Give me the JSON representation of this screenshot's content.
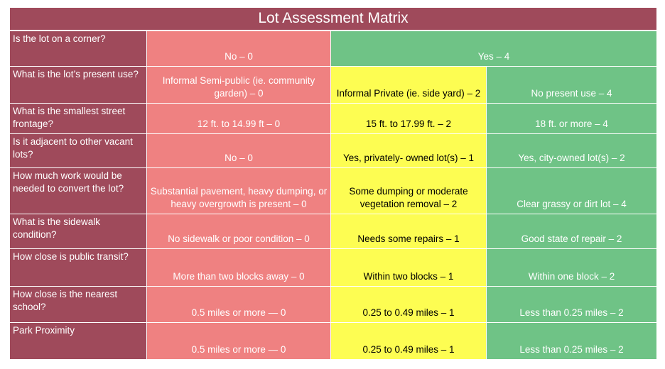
{
  "title": "Lot Assessment Matrix",
  "rows": [
    {
      "question": "Is the lot on a corner?",
      "red": "No – 0",
      "green": "Yes – 4"
    },
    {
      "question": "What is the lot’s present use?",
      "red": "Informal Semi-public (ie. community garden) – 0",
      "yellow": "Informal Private (ie. side yard) – 2",
      "green": "No present use – 4"
    },
    {
      "question": "What is the smallest street frontage?",
      "red": "12 ft. to 14.99 ft – 0",
      "yellow": "15 ft. to 17.99 ft. – 2",
      "green": "18 ft. or more – 4"
    },
    {
      "question": "Is it adjacent to other vacant lots?",
      "red": "No – 0",
      "yellow": "Yes, privately- owned lot(s) – 1",
      "green": "Yes, city-owned lot(s) – 2"
    },
    {
      "question": "How much work would be needed to convert the lot?",
      "red": "Substantial pavement, heavy dumping, or heavy overgrowth is present – 0",
      "yellow": "Some dumping or moderate vegetation removal – 2",
      "green": "Clear grassy or dirt lot – 4"
    },
    {
      "question": "What is the sidewalk condition?",
      "red": "No sidewalk or poor condition – 0",
      "yellow": "Needs some repairs – 1",
      "green": "Good state of repair – 2"
    },
    {
      "question": "How close is public transit?",
      "red": "More than two blocks away – 0",
      "yellow": "Within two blocks – 1",
      "green": "Within one block – 2"
    },
    {
      "question": "How close is the nearest school?",
      "red": "0.5 miles or more — 0",
      "yellow": "0.25 to 0.49 miles – 1",
      "green": "Less than 0.25 miles – 2"
    },
    {
      "question": "Park Proximity",
      "red": "0.5 miles or more — 0",
      "yellow": "0.25 to 0.49 miles – 1",
      "green": "Less than 0.25 miles – 2"
    }
  ],
  "colors": {
    "header": "#9f4a5b",
    "red": "#ef8181",
    "yellow": "#fdfd52",
    "green": "#6fc386"
  }
}
